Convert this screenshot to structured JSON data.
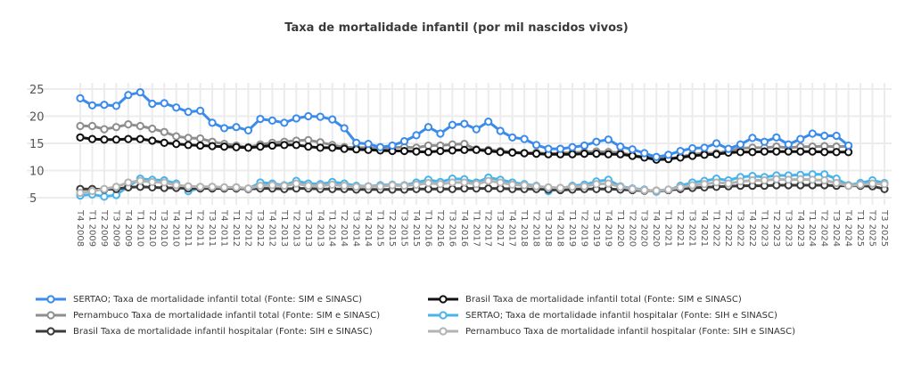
{
  "chart_data": {
    "type": "line",
    "title": "Taxa de mortalidade infantil (por mil nascidos vivos)",
    "xlabel": "",
    "ylabel": "",
    "ylim": [
      5,
      25
    ],
    "yticks": [
      5,
      10,
      15,
      20,
      25
    ],
    "grid": true,
    "legend_position": "bottom",
    "x": [
      "T4 2008",
      "T1 2009",
      "T2 2009",
      "T3 2009",
      "T4 2009",
      "T1 2010",
      "T2 2010",
      "T3 2010",
      "T4 2010",
      "T1 2011",
      "T2 2011",
      "T3 2011",
      "T4 2011",
      "T1 2012",
      "T2 2012",
      "T3 2012",
      "T4 2012",
      "T1 2013",
      "T2 2013",
      "T3 2013",
      "T4 2013",
      "T1 2014",
      "T2 2014",
      "T3 2014",
      "T4 2014",
      "T1 2015",
      "T2 2015",
      "T3 2015",
      "T4 2015",
      "T1 2016",
      "T2 2016",
      "T3 2016",
      "T4 2016",
      "T1 2017",
      "T2 2017",
      "T3 2017",
      "T4 2017",
      "T1 2018",
      "T2 2018",
      "T3 2018",
      "T4 2018",
      "T1 2019",
      "T2 2019",
      "T3 2019",
      "T4 2019",
      "T1 2020",
      "T2 2020",
      "T3 2020",
      "T4 2020",
      "T1 2021",
      "T2 2021",
      "T3 2021",
      "T4 2021",
      "T1 2022",
      "T2 2022",
      "T3 2022",
      "T4 2022",
      "T1 2023",
      "T2 2023",
      "T3 2023",
      "T4 2023",
      "T1 2024",
      "T2 2024",
      "T3 2024",
      "T4 2024",
      "T1 2025",
      "T2 2025",
      "T3 2025"
    ],
    "series": [
      {
        "name": "SERTAO; Taxa de mortalidade infantil total (Fonte: SIM e SINASC)",
        "color": "#3b8beb",
        "values": [
          23.3,
          22.0,
          22.1,
          21.9,
          23.9,
          24.4,
          22.3,
          22.4,
          21.6,
          20.8,
          21.0,
          18.8,
          17.8,
          18.0,
          17.4,
          19.5,
          19.2,
          18.8,
          19.6,
          20.0,
          19.9,
          19.4,
          17.8,
          15.1,
          14.9,
          14.3,
          14.6,
          15.4,
          16.5,
          18.0,
          16.8,
          18.4,
          18.6,
          17.6,
          19.0,
          17.3,
          16.1,
          15.8,
          14.7,
          14.0,
          14.0,
          14.3,
          14.6,
          15.3,
          15.7,
          14.4,
          13.9,
          13.2,
          12.5,
          12.9,
          13.6,
          14.1,
          14.2,
          15.0,
          14.0,
          14.8,
          16.0,
          15.3,
          16.1,
          14.8,
          15.8,
          16.8,
          16.4,
          16.4,
          14.6,
          null,
          null,
          null
        ]
      },
      {
        "name": "Pernambuco  Taxa de mortalidade infantil total (Fonte: SIM e SINASC)",
        "color": "#8e8e8e",
        "values": [
          18.2,
          18.2,
          17.6,
          18.0,
          18.5,
          18.2,
          17.7,
          17.1,
          16.3,
          16.0,
          15.9,
          15.3,
          14.9,
          14.6,
          14.3,
          14.8,
          15.1,
          15.3,
          15.5,
          15.6,
          15.2,
          14.7,
          14.3,
          14.2,
          14.2,
          14.0,
          14.2,
          14.3,
          14.2,
          14.6,
          14.6,
          14.8,
          14.9,
          13.9,
          13.8,
          13.6,
          13.4,
          13.2,
          13.3,
          13.1,
          13.2,
          13.3,
          13.4,
          13.5,
          13.4,
          13.3,
          12.8,
          12.5,
          12.4,
          12.2,
          12.5,
          13.0,
          13.2,
          13.2,
          13.6,
          14.1,
          14.2,
          14.2,
          14.4,
          14.2,
          14.4,
          14.4,
          14.5,
          14.4,
          14.5,
          null,
          null,
          null
        ]
      },
      {
        "name": "Brasil  Taxa de mortalidade infantil total (Fonte: SIM e SINASC)",
        "color": "#111111",
        "values": [
          16.1,
          15.8,
          15.7,
          15.7,
          15.8,
          15.8,
          15.5,
          15.1,
          14.9,
          14.7,
          14.6,
          14.5,
          14.4,
          14.3,
          14.2,
          14.4,
          14.6,
          14.7,
          14.7,
          14.4,
          14.2,
          14.2,
          14.0,
          13.9,
          13.8,
          13.7,
          13.6,
          13.6,
          13.5,
          13.4,
          13.6,
          13.7,
          13.8,
          13.8,
          13.6,
          13.4,
          13.3,
          13.2,
          13.1,
          13.0,
          13.0,
          13.0,
          13.1,
          13.1,
          13.0,
          13.0,
          12.7,
          12.4,
          12.0,
          12.1,
          12.4,
          12.7,
          12.9,
          13.0,
          13.3,
          13.4,
          13.4,
          13.5,
          13.5,
          13.5,
          13.5,
          13.5,
          13.4,
          13.4,
          13.4,
          null,
          null,
          null
        ]
      },
      {
        "name": "SERTAO; Taxa de mortalidade infantil hospitalar (Fonte: SIH e SINASC)",
        "color": "#4ab4ea",
        "values": [
          5.4,
          5.6,
          5.2,
          5.5,
          7.1,
          8.5,
          8.3,
          8.2,
          7.6,
          6.2,
          6.8,
          7.0,
          6.8,
          6.9,
          6.6,
          7.8,
          7.6,
          7.3,
          8.1,
          7.6,
          7.5,
          7.9,
          7.6,
          7.2,
          7.1,
          7.3,
          7.4,
          7.3,
          7.8,
          8.3,
          7.9,
          8.5,
          8.4,
          7.8,
          8.7,
          8.3,
          7.8,
          7.5,
          7.2,
          6.2,
          6.6,
          7.2,
          7.4,
          8.0,
          8.3,
          7.1,
          6.7,
          6.5,
          6.1,
          6.4,
          7.2,
          7.8,
          8.1,
          8.5,
          8.2,
          8.8,
          9.0,
          8.8,
          9.1,
          9.1,
          9.2,
          9.3,
          9.3,
          8.5,
          7.3,
          7.7,
          8.2,
          7.7
        ]
      },
      {
        "name": "Brasil  Taxa de mortalidade infantil hospitalar (Fonte: SIH e SINASC)",
        "color": "#3a3a3a",
        "values": [
          6.6,
          6.6,
          6.5,
          6.6,
          6.9,
          7.0,
          6.9,
          6.8,
          6.8,
          6.7,
          6.7,
          6.7,
          6.7,
          6.7,
          6.6,
          6.7,
          6.7,
          6.6,
          6.7,
          6.7,
          6.6,
          6.6,
          6.6,
          6.5,
          6.5,
          6.5,
          6.5,
          6.5,
          6.6,
          6.6,
          6.6,
          6.6,
          6.7,
          6.7,
          6.7,
          6.7,
          6.6,
          6.6,
          6.6,
          6.5,
          6.4,
          6.5,
          6.6,
          6.6,
          6.6,
          6.5,
          6.4,
          6.3,
          6.3,
          6.4,
          6.6,
          6.8,
          6.9,
          7.0,
          7.1,
          7.2,
          7.2,
          7.2,
          7.3,
          7.3,
          7.3,
          7.3,
          7.3,
          7.2,
          7.2,
          7.2,
          7.1,
          6.6
        ]
      },
      {
        "name": "Pernambuco  Taxa de mortalidade infantil hospitalar (Fonte: SIH e SINASC)",
        "color": "#b3b3b3",
        "values": [
          5.9,
          6.2,
          6.6,
          7.0,
          7.8,
          8.1,
          7.9,
          7.8,
          7.3,
          7.1,
          7.0,
          7.0,
          6.9,
          6.9,
          6.7,
          7.2,
          7.3,
          7.2,
          7.6,
          7.2,
          7.2,
          7.4,
          7.2,
          7.0,
          7.1,
          7.1,
          7.3,
          7.2,
          7.4,
          7.7,
          7.5,
          7.8,
          7.8,
          7.5,
          8.1,
          7.8,
          7.4,
          7.3,
          7.1,
          6.9,
          6.8,
          7.0,
          7.1,
          7.5,
          7.6,
          7.0,
          6.6,
          6.4,
          6.3,
          6.5,
          6.9,
          7.3,
          7.5,
          7.8,
          7.6,
          8.0,
          8.2,
          8.2,
          8.4,
          8.3,
          8.4,
          8.3,
          8.2,
          7.7,
          7.2,
          7.4,
          7.6,
          7.5
        ]
      }
    ],
    "legend": [
      "SERTAO; Taxa de mortalidade infantil total (Fonte: SIM e SINASC)",
      "Brasil  Taxa de mortalidade infantil total (Fonte: SIM e SINASC)",
      "Pernambuco  Taxa de mortalidade infantil total (Fonte: SIM e SINASC)",
      "SERTAO; Taxa de mortalidade infantil hospitalar (Fonte: SIH e SINASC)",
      "Brasil  Taxa de mortalidade infantil hospitalar (Fonte: SIH e SINASC)",
      "Pernambuco  Taxa de mortalidade infantil hospitalar (Fonte: SIH e SINASC)"
    ]
  }
}
